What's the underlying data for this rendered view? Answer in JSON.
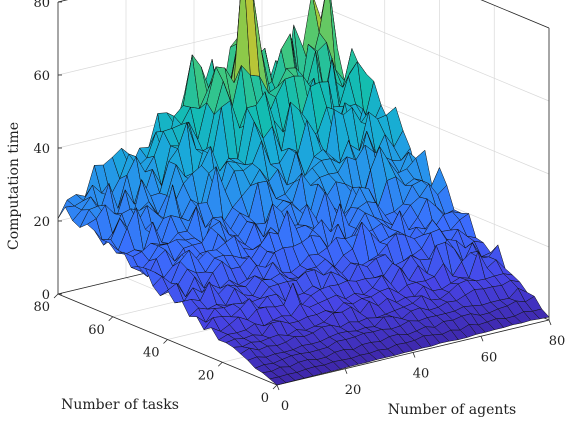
{
  "chart_data": {
    "type": "surface",
    "title": "",
    "xlabel": "Number of agents",
    "ylabel": "Number of tasks",
    "zlabel": "Computation time",
    "xlim": [
      0,
      80
    ],
    "ylim": [
      0,
      80
    ],
    "zlim": [
      0,
      80
    ],
    "x_ticks": [
      "0",
      "20",
      "40",
      "60",
      "80"
    ],
    "y_ticks": [
      "0",
      "20",
      "40",
      "60",
      "80"
    ],
    "z_ticks": [
      "0",
      "20",
      "40",
      "60",
      "80"
    ],
    "grid": true,
    "colormap": "parula",
    "colormap_colors": [
      "#3e26a8",
      "#4744e6",
      "#3a6efe",
      "#2a8fef",
      "#19abd8",
      "#13bdb0",
      "#45c878",
      "#9fc93d",
      "#e3bf2c",
      "#f9d72b"
    ],
    "grid_resolution": 30,
    "surface_trend": {
      "corner_low": {
        "agents": 0,
        "tasks": 0,
        "time": 0
      },
      "corner_agents_max": {
        "agents": 80,
        "tasks": 0,
        "time": 1
      },
      "corner_tasks_max": {
        "agents": 0,
        "tasks": 80,
        "time": 24
      },
      "corner_both_max": {
        "agents": 80,
        "tasks": 80,
        "time": 50
      },
      "peak": {
        "agents": 48,
        "tasks": 72,
        "time": 83
      }
    }
  }
}
